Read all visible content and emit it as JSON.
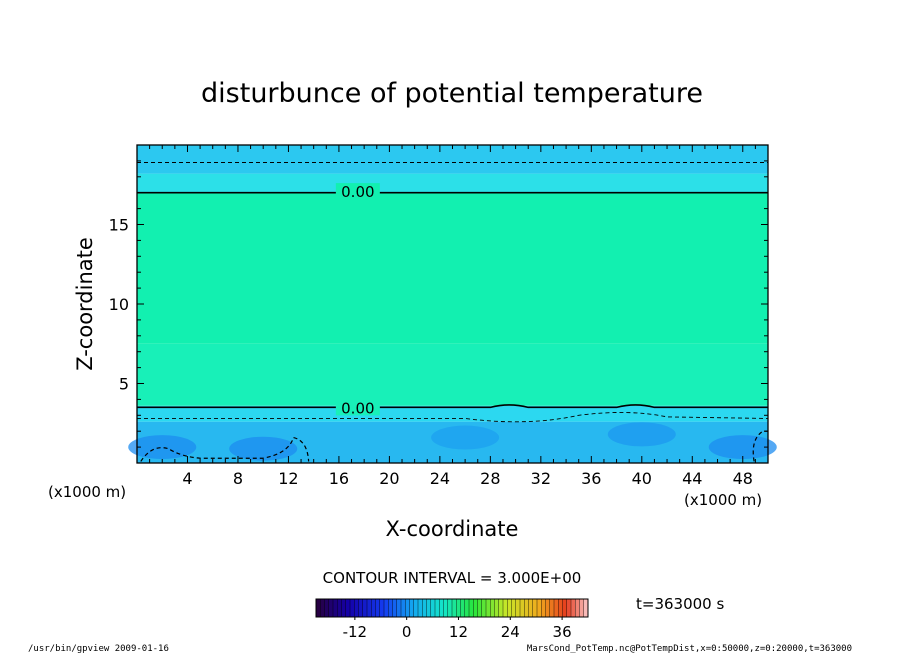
{
  "chart_data": {
    "type": "heatmap",
    "title": "disturbunce of potential temperature",
    "xlabel": "X-coordinate",
    "ylabel": "Z-coordinate",
    "x_unit_left": "(x1000 m)",
    "x_unit_right": "(x1000 m)",
    "xlim": [
      0,
      50
    ],
    "ylim": [
      0,
      20
    ],
    "x_ticks": [
      4,
      8,
      12,
      16,
      20,
      24,
      28,
      32,
      36,
      40,
      44,
      48
    ],
    "y_ticks": [
      5,
      10,
      15
    ],
    "contour_interval_text": "CONTOUR INTERVAL = 3.000E+00",
    "time_label": "t=363000 s",
    "colorbar": {
      "range": [
        -21,
        42
      ],
      "ticks": [
        -12,
        0,
        12,
        24,
        36
      ]
    },
    "contour_labels": [
      {
        "x": 17.5,
        "z": 17.1,
        "text": "0.00"
      },
      {
        "x": 17.5,
        "z": 3.5,
        "text": "0.00"
      }
    ],
    "bands": [
      {
        "z0": 0.0,
        "z1": 2.6,
        "color": "#28b8f0"
      },
      {
        "z0": 2.6,
        "z1": 3.6,
        "color": "#2cd8f0"
      },
      {
        "z0": 3.6,
        "z1": 7.5,
        "color": "#18f0b8"
      },
      {
        "z0": 7.5,
        "z1": 17.0,
        "color": "#12f0b0"
      },
      {
        "z0": 17.0,
        "z1": 18.2,
        "color": "#2ce0e8"
      },
      {
        "z0": 18.2,
        "z1": 20.0,
        "color": "#2cc8f0"
      }
    ]
  },
  "footer": {
    "left": "/usr/bin/gpview   2009-01-16",
    "right": "MarsCond_PotTemp.nc@PotTempDist,x=0:50000,z=0:20000,t=363000"
  }
}
